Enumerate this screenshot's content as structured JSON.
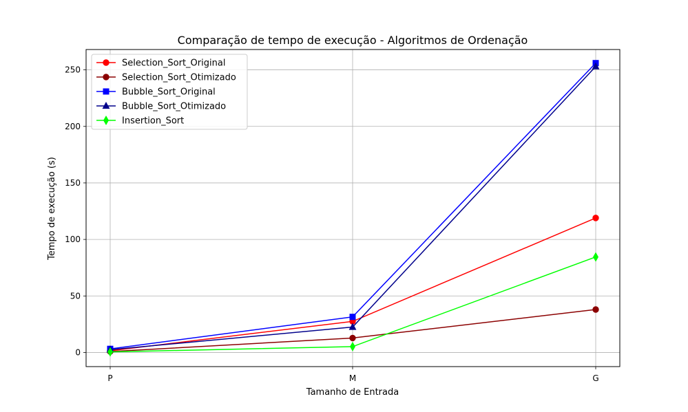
{
  "chart_data": {
    "type": "line",
    "title": "Comparação de tempo de execução - Algoritmos de Ordenação",
    "xlabel": "Tamanho de Entrada",
    "ylabel": "Tempo de execução (s)",
    "categories": [
      "P",
      "M",
      "G"
    ],
    "ylim": [
      -12.5,
      268
    ],
    "yticks": [
      0,
      50,
      100,
      150,
      200,
      250
    ],
    "grid": true,
    "legend_position": "top-left",
    "series": [
      {
        "name": "Selection_Sort_Original",
        "values": [
          1.5,
          27.5,
          119
        ],
        "color": "#ff0000",
        "marker": "circle"
      },
      {
        "name": "Selection_Sort_Otimizado",
        "values": [
          0.8,
          12.8,
          38
        ],
        "color": "#8b0000",
        "marker": "circle"
      },
      {
        "name": "Bubble_Sort_Original",
        "values": [
          3.2,
          31.5,
          256
        ],
        "color": "#0000ff",
        "marker": "square"
      },
      {
        "name": "Bubble_Sort_Otimizado",
        "values": [
          2.5,
          22.5,
          253
        ],
        "color": "#00008b",
        "marker": "triangle"
      },
      {
        "name": "Insertion_Sort",
        "values": [
          0.5,
          5.2,
          84.5
        ],
        "color": "#00ff00",
        "marker": "diamond"
      }
    ]
  }
}
